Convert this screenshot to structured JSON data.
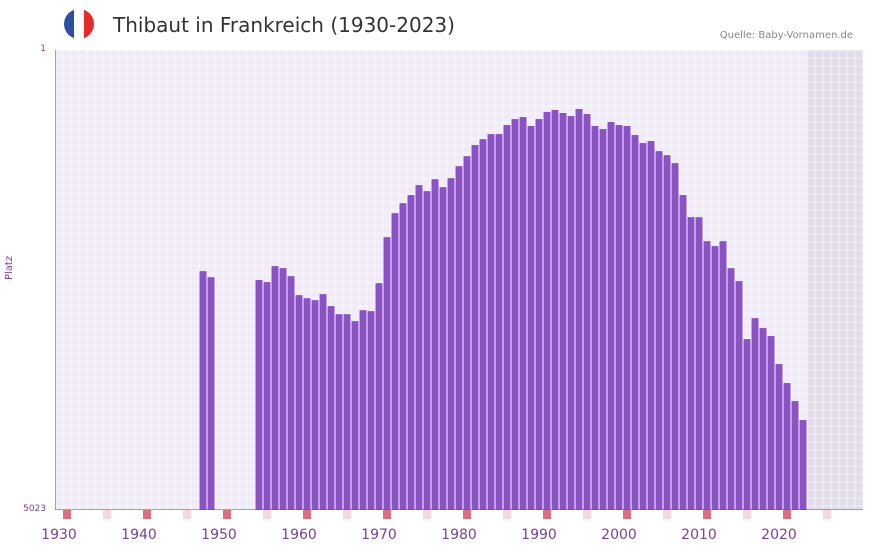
{
  "header": {
    "title": "Thibaut in Frankreich (1930-2023)",
    "source": "Quelle: Baby-Vornamen.de",
    "flag_colors": [
      "#2c4fa3",
      "#ffffff",
      "#e52b2b"
    ]
  },
  "colors": {
    "bar": "#8a52c4",
    "axis": "#7b3fa0",
    "grid_bg": "#f1ebf8",
    "future_bg": "#e3ddeb",
    "tick_major": "#d9707a",
    "tick_minor": "#f5d6dc"
  },
  "chart_data": {
    "type": "bar",
    "title": "Thibaut in Frankreich (1930-2023)",
    "xlabel": "",
    "ylabel": "Platz",
    "y_axis_inverted": true,
    "ylim": [
      1,
      5023
    ],
    "ytick_labels": [
      "1",
      "5023"
    ],
    "xtick_labels": [
      "1930",
      "1940",
      "1950",
      "1960",
      "1970",
      "1980",
      "1990",
      "2000",
      "2010",
      "2020"
    ],
    "categories": [
      1946,
      1947,
      1953,
      1954,
      1955,
      1956,
      1957,
      1958,
      1959,
      1960,
      1961,
      1962,
      1963,
      1964,
      1965,
      1966,
      1967,
      1968,
      1969,
      1970,
      1971,
      1972,
      1973,
      1974,
      1975,
      1976,
      1977,
      1978,
      1979,
      1980,
      1981,
      1982,
      1983,
      1984,
      1985,
      1986,
      1987,
      1988,
      1989,
      1990,
      1991,
      1992,
      1993,
      1994,
      1995,
      1996,
      1997,
      1998,
      1999,
      2000,
      2001,
      2002,
      2003,
      2004,
      2005,
      2006,
      2007,
      2008,
      2009,
      2010,
      2011,
      2012,
      2013,
      2014,
      2015,
      2016,
      2017,
      2018,
      2019,
      2020,
      2021
    ],
    "values": [
      2415,
      2481,
      2512,
      2535,
      2360,
      2382,
      2470,
      2677,
      2710,
      2732,
      2666,
      2797,
      2885,
      2885,
      2961,
      2841,
      2852,
      2546,
      2044,
      1782,
      1673,
      1585,
      1476,
      1542,
      1411,
      1498,
      1400,
      1269,
      1160,
      1039,
      974,
      919,
      919,
      820,
      755,
      733,
      831,
      755,
      678,
      656,
      689,
      722,
      645,
      700,
      831,
      864,
      787,
      820,
      831,
      929,
      1017,
      995,
      1105,
      1149,
      1236,
      1585,
      1826,
      1826,
      2088,
      2142,
      2088,
      2383,
      2524,
      3157,
      2928,
      3037,
      3124,
      3430,
      3637,
      3834,
      4041
    ],
    "grid": true,
    "legend": null
  }
}
